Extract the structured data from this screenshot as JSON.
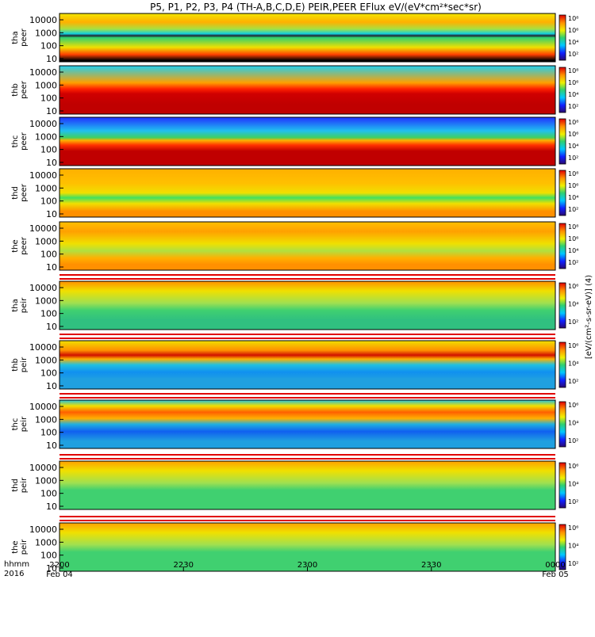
{
  "chart_data": {
    "type": "heatmap",
    "title": "P5, P1, P2, P3, P4 (TH-A,B,C,D,E) PEIR,PEER EFlux eV/(eV*cm²*sec*sr)",
    "x_axis": {
      "label_lines": [
        "hhmm",
        "2016"
      ],
      "ticks": [
        {
          "time": "2200",
          "date": "Feb 04"
        },
        {
          "time": "2230",
          "date": ""
        },
        {
          "time": "2300",
          "date": ""
        },
        {
          "time": "2330",
          "date": ""
        },
        {
          "time": "0000",
          "date": "Feb 05"
        }
      ]
    },
    "y_axis": {
      "scale": "log",
      "unit": "eV",
      "ticks": [
        "10",
        "100",
        "1000",
        "10000"
      ]
    },
    "colorbar": {
      "scale": "log",
      "ticks_a": [
        "10²",
        "10⁴",
        "10⁶",
        "10⁸"
      ],
      "ticks_b": [
        "10²",
        "10⁴",
        "10⁶"
      ],
      "units_label": "[eV/(cm²-s-sr-eV)] (4)",
      "colors": [
        "#2a0a70",
        "#1020ff",
        "#00c8ff",
        "#30d070",
        "#f0f000",
        "#ff9000",
        "#e00000"
      ]
    },
    "panels": [
      {
        "probe": "tha",
        "species": "peer",
        "tick_labels": [
          "10",
          "100",
          "1000",
          "10000"
        ]
      },
      {
        "probe": "thb",
        "species": "peer",
        "tick_labels": [
          "10",
          "100",
          "1000",
          "10000"
        ]
      },
      {
        "probe": "thc",
        "species": "peer",
        "tick_labels": [
          "10",
          "100",
          "1000",
          "10000"
        ]
      },
      {
        "probe": "thd",
        "species": "peer",
        "tick_labels": [
          "10",
          "100",
          "1000",
          "10000"
        ]
      },
      {
        "probe": "the",
        "species": "peer",
        "tick_labels": [
          "10",
          "100",
          "1000",
          "10000"
        ]
      },
      {
        "probe": "tha",
        "species": "peir",
        "tick_labels": [
          "10",
          "100",
          "1000",
          "10000"
        ]
      },
      {
        "probe": "thb",
        "species": "peir",
        "tick_labels": [
          "10",
          "100",
          "1000",
          "10000"
        ]
      },
      {
        "probe": "thc",
        "species": "peir",
        "tick_labels": [
          "10",
          "100",
          "1000",
          "10000"
        ]
      },
      {
        "probe": "thd",
        "species": "peir",
        "tick_labels": [
          "10",
          "100",
          "1000",
          "10000"
        ]
      },
      {
        "probe": "the",
        "species": "peir",
        "tick_labels": [
          "10",
          "100",
          "1000",
          "10000"
        ]
      }
    ]
  }
}
